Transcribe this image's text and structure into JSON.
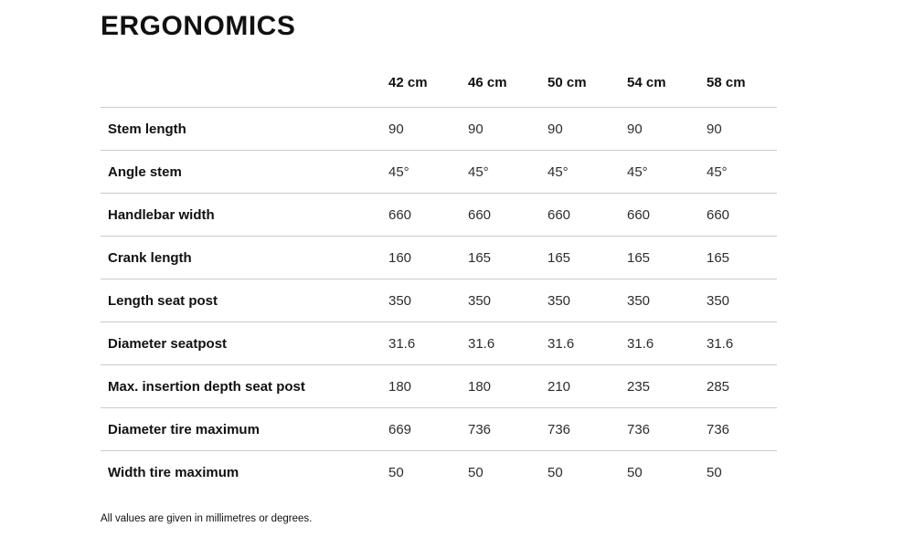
{
  "page": {
    "title": "ERGONOMICS",
    "footnote": "All values are given in millimetres or degrees."
  },
  "table": {
    "columns": [
      "42 cm",
      "46 cm",
      "50 cm",
      "54 cm",
      "58 cm"
    ],
    "rows": [
      {
        "label": "Stem length",
        "values": [
          "90",
          "90",
          "90",
          "90",
          "90"
        ]
      },
      {
        "label": "Angle stem",
        "values": [
          "45°",
          "45°",
          "45°",
          "45°",
          "45°"
        ]
      },
      {
        "label": "Handlebar width",
        "values": [
          "660",
          "660",
          "660",
          "660",
          "660"
        ]
      },
      {
        "label": "Crank length",
        "values": [
          "160",
          "165",
          "165",
          "165",
          "165"
        ]
      },
      {
        "label": "Length seat post",
        "values": [
          "350",
          "350",
          "350",
          "350",
          "350"
        ]
      },
      {
        "label": "Diameter seatpost",
        "values": [
          "31.6",
          "31.6",
          "31.6",
          "31.6",
          "31.6"
        ]
      },
      {
        "label": "Max. insertion depth seat post",
        "values": [
          "180",
          "180",
          "210",
          "235",
          "285"
        ]
      },
      {
        "label": "Diameter tire maximum",
        "values": [
          "669",
          "736",
          "736",
          "736",
          "736"
        ]
      },
      {
        "label": "Width tire maximum",
        "values": [
          "50",
          "50",
          "50",
          "50",
          "50"
        ]
      }
    ]
  },
  "colors": {
    "text": "#111111",
    "value_text": "#2d2d2d",
    "divider": "#cbcbcb"
  }
}
